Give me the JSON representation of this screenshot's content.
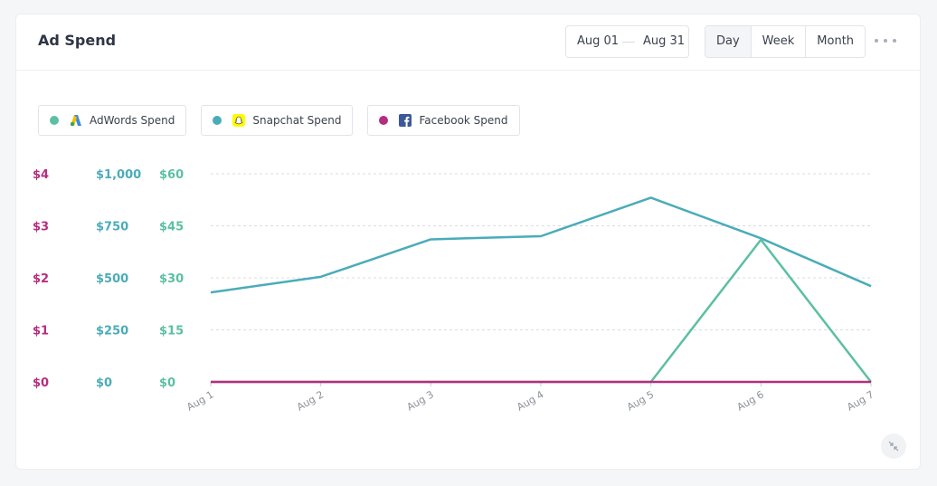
{
  "header": {
    "title": "Ad Spend",
    "date_start": "Aug 01",
    "date_end": "Aug 31",
    "periods": [
      "Day",
      "Week",
      "Month"
    ],
    "active_period": "Day",
    "more_icon": "more-horizontal-icon"
  },
  "legend": [
    {
      "label": "AdWords Spend",
      "color": "#5cbfa3",
      "icon": "adwords-logo-icon"
    },
    {
      "label": "Snapchat Spend",
      "color": "#4aacb9",
      "icon": "snapchat-logo-icon"
    },
    {
      "label": "Facebook Spend",
      "color": "#b52d7f",
      "icon": "facebook-logo-icon"
    }
  ],
  "chart_data": {
    "type": "line",
    "categories": [
      "Aug 1",
      "Aug 2",
      "Aug 3",
      "Aug 4",
      "Aug 5",
      "Aug 6",
      "Aug 7"
    ],
    "axes": [
      {
        "color": "#b52d7f",
        "ticks": [
          "$0",
          "$1",
          "$2",
          "$3",
          "$4"
        ],
        "range": [
          0,
          4
        ]
      },
      {
        "color": "#4aacb9",
        "ticks": [
          "$0",
          "$250",
          "$500",
          "$750",
          "$1,000"
        ],
        "range": [
          0,
          1000
        ]
      },
      {
        "color": "#5cbfa3",
        "ticks": [
          "$0",
          "$15",
          "$30",
          "$45",
          "$60"
        ],
        "range": [
          0,
          60
        ]
      }
    ],
    "series": [
      {
        "name": "Snapchat Spend",
        "axis": 1,
        "color": "#4aacb9",
        "values": [
          430,
          505,
          685,
          700,
          885,
          690,
          460
        ]
      },
      {
        "name": "AdWords Spend",
        "axis": 2,
        "color": "#5cbfa3",
        "values": [
          0,
          0,
          0,
          0,
          0,
          41,
          0
        ]
      },
      {
        "name": "Facebook Spend",
        "axis": 0,
        "color": "#b52d7f",
        "values": [
          0,
          0,
          0,
          0,
          0,
          0,
          0
        ]
      }
    ],
    "grid": true,
    "legend_position": "top-left"
  },
  "footer": {
    "collapse_icon": "collapse-icon"
  }
}
